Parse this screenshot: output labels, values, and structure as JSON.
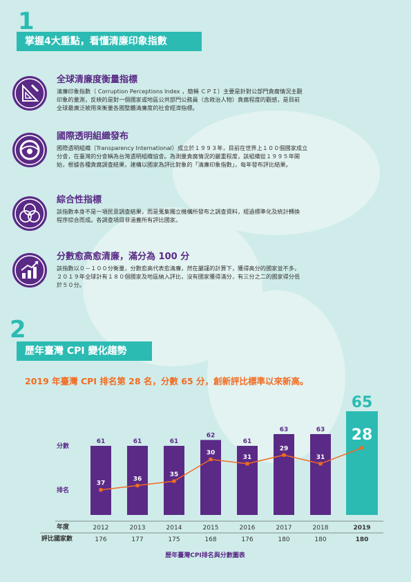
{
  "section1": {
    "number": "1",
    "title": "掌握4大重點，看懂清廉印象指數",
    "items": [
      {
        "icon": "ruler-triangle-icon",
        "title": "全球清廉度衡量指標",
        "lines": [
          "清廉印象指數（ Corruption Perceptions Index ，簡稱 ＣＰＩ）主要是針對公部門貪腐情況主觀",
          "印象的量測，反映的是對一個國家或地區公共部門公務員（含政治人物）貪腐程度的觀感，是目前",
          "全球最廣泛被用來衡量各國整體清廉度的社會經濟指標。"
        ]
      },
      {
        "icon": "transparency-logo-icon",
        "title": "國際透明組織發布",
        "lines": [
          "國際透明組織（Transparency International）成立於１９９３年，目前在世界上１００個國家成立",
          "分會，在臺灣的分會稱為台灣透明組織協會。為測量貪腐情況的嚴重程度，該組織從１９９５年開",
          "始，根據各種貪腐調查結果，建構以國家為評比對象的「清廉印象指數」，每年發布評比結果。"
        ]
      },
      {
        "icon": "venn-circles-icon",
        "title": "綜合性指標",
        "lines": [
          "該指數本身不是一項民意調查結果，而是蒐集獨立機構所發布之調查資料，經過標準化及統計轉換",
          "程序綜合而成。各調查項目非涵蓋所有評比國家。"
        ]
      },
      {
        "icon": "bar-chart-rising-icon",
        "title": "分數愈高愈清廉，滿分為 100 分",
        "lines": [
          "該指數以０－１００分衡量，分數愈高代表愈清廉，然在嚴謹的計算下，獲得高分的國家並不多，",
          "２０１９年全球計有１８０個國家及地區納入評比，沒有國家獲得滿分，有三分之二的國家得分低",
          "於５０分。"
        ]
      }
    ]
  },
  "section2": {
    "number": "2",
    "title": "歷年臺灣 CPI 變化趨勢",
    "headline": "2019 年臺灣 CPI 排名第 28 名，分數 65 分，創新評比標準以來新高。"
  },
  "colors": {
    "teal": "#2bbbb3",
    "purple": "#5a2a86",
    "orange": "#f26b21"
  },
  "chart_data": {
    "type": "bar",
    "title": "歷年臺灣CPI排名與分數圖表",
    "categories": [
      "2012",
      "2013",
      "2014",
      "2015",
      "2016",
      "2017",
      "2018",
      "2019"
    ],
    "series": [
      {
        "name": "分數",
        "type": "bar",
        "values": [
          61,
          61,
          61,
          62,
          61,
          63,
          63,
          65
        ]
      },
      {
        "name": "排名",
        "type": "line",
        "values": [
          37,
          36,
          35,
          30,
          31,
          29,
          31,
          28
        ]
      }
    ],
    "row_labels": {
      "year": "年度",
      "count": "評比國家數"
    },
    "countries_evaluated": [
      176,
      177,
      175,
      168,
      176,
      180,
      180,
      180
    ],
    "highlight_category": "2019",
    "ylim": [
      0,
      66
    ],
    "rank_ylim": [
      26,
      42
    ]
  }
}
